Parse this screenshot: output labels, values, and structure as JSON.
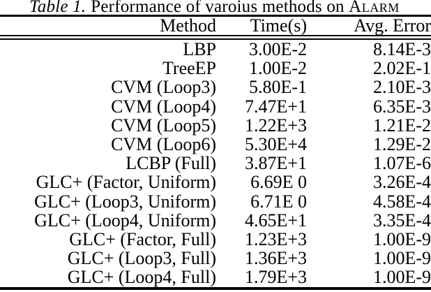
{
  "caption": {
    "label": "Table 1.",
    "text": "Performance of varoius methods on",
    "dataset": "Alarm"
  },
  "table": {
    "headers": [
      "Method",
      "Time(s)",
      "Avg. Error"
    ],
    "rows": [
      {
        "method": "LBP",
        "time": "3.00E-2",
        "error": "8.14E-3"
      },
      {
        "method": "TreeEP",
        "time": "1.00E-2",
        "error": "2.02E-1"
      },
      {
        "method": "CVM (Loop3)",
        "time": "5.80E-1",
        "error": "2.10E-3"
      },
      {
        "method": "CVM (Loop4)",
        "time": "7.47E+1",
        "error": "6.35E-3"
      },
      {
        "method": "CVM (Loop5)",
        "time": "1.22E+3",
        "error": "1.21E-2"
      },
      {
        "method": "CVM (Loop6)",
        "time": "5.30E+4",
        "error": "1.29E-2"
      },
      {
        "method": "LCBP (Full)",
        "time": "3.87E+1",
        "error": "1.07E-6"
      },
      {
        "method": "GLC+ (Factor, Uniform)",
        "time": "6.69E 0",
        "error": "3.26E-4"
      },
      {
        "method": "GLC+ (Loop3, Uniform)",
        "time": "6.71E 0",
        "error": "4.58E-4"
      },
      {
        "method": "GLC+ (Loop4, Uniform)",
        "time": "4.65E+1",
        "error": "3.35E-4"
      },
      {
        "method": "GLC+ (Factor, Full)",
        "time": "1.23E+3",
        "error": "1.00E-9"
      },
      {
        "method": "GLC+ (Loop3, Full)",
        "time": "1.36E+3",
        "error": "1.00E-9"
      },
      {
        "method": "GLC+ (Loop4, Full)",
        "time": "1.79E+3",
        "error": "1.00E-9"
      }
    ]
  },
  "colors": {
    "text": "#000000",
    "background": "#ffffff",
    "rule": "#000000"
  }
}
